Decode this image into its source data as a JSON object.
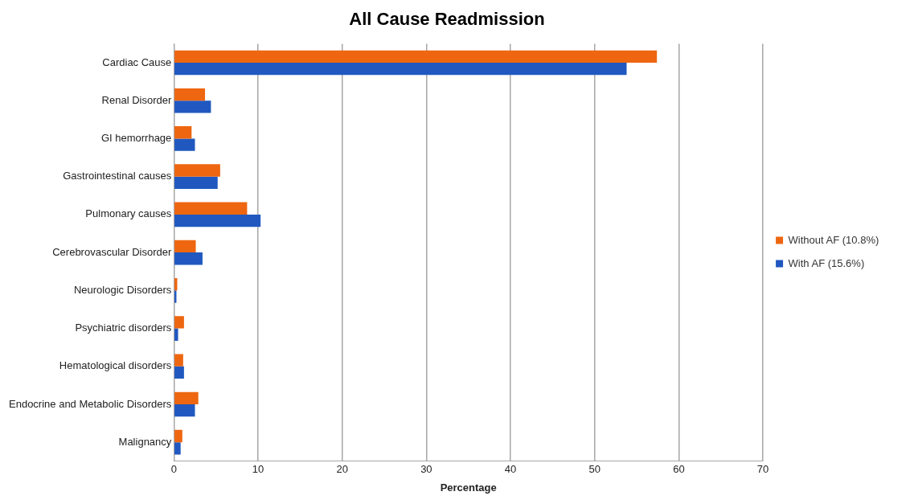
{
  "chart_data": {
    "type": "bar",
    "orientation": "horizontal",
    "title": "All Cause Readmission",
    "xlabel": "Percentage",
    "categories": [
      "Cardiac Cause",
      "Renal Disorder",
      "GI hemorrhage",
      "Gastrointestinal causes",
      "Pulmonary causes",
      "Cerebrovascular Disorder",
      "Neurologic Disorders",
      "Psychiatric disorders",
      "Hematological disorders",
      "Endocrine and Metabolic Disorders",
      "Malignancy"
    ],
    "series": [
      {
        "name": "Without AF (10.8%)",
        "color": "#ee6610",
        "values": [
          57.4,
          3.7,
          2.1,
          5.5,
          8.7,
          2.6,
          0.4,
          1.2,
          1.1,
          2.9,
          1.0
        ]
      },
      {
        "name": "With AF (15.6%)",
        "color": "#2058c0",
        "values": [
          53.8,
          4.4,
          2.5,
          5.2,
          10.3,
          3.4,
          0.3,
          0.5,
          1.2,
          2.5,
          0.8
        ]
      }
    ],
    "xlim": [
      0,
      70
    ],
    "xticks": [
      0,
      10,
      20,
      30,
      40,
      50,
      60,
      70
    ],
    "grid": "x",
    "legend": "right"
  }
}
